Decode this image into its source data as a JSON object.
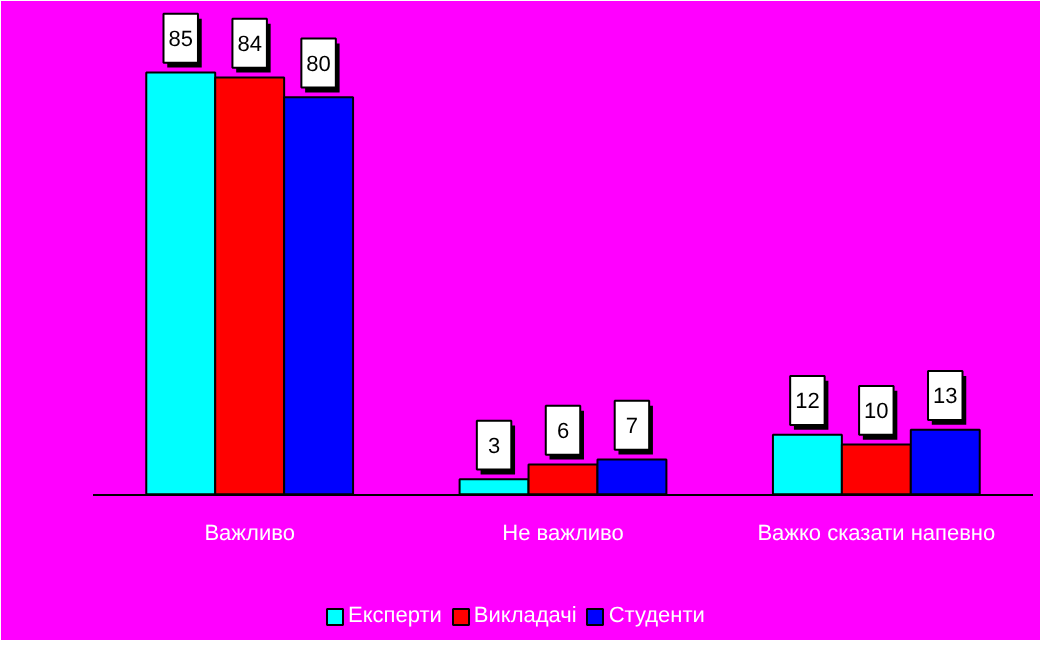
{
  "chart_data": {
    "type": "bar",
    "categories": [
      "Важливо",
      "Не важливо",
      "Важко сказати напевно"
    ],
    "series": [
      {
        "name": "Експерти",
        "color": "#00ffff",
        "values": [
          85,
          3,
          12
        ]
      },
      {
        "name": "Викладачі",
        "color": "#ff0000",
        "values": [
          84,
          6,
          10
        ]
      },
      {
        "name": "Студенти",
        "color": "#0000ff",
        "values": [
          80,
          7,
          13
        ]
      }
    ],
    "data_labels": true,
    "legend": "bottom",
    "grid": false
  }
}
